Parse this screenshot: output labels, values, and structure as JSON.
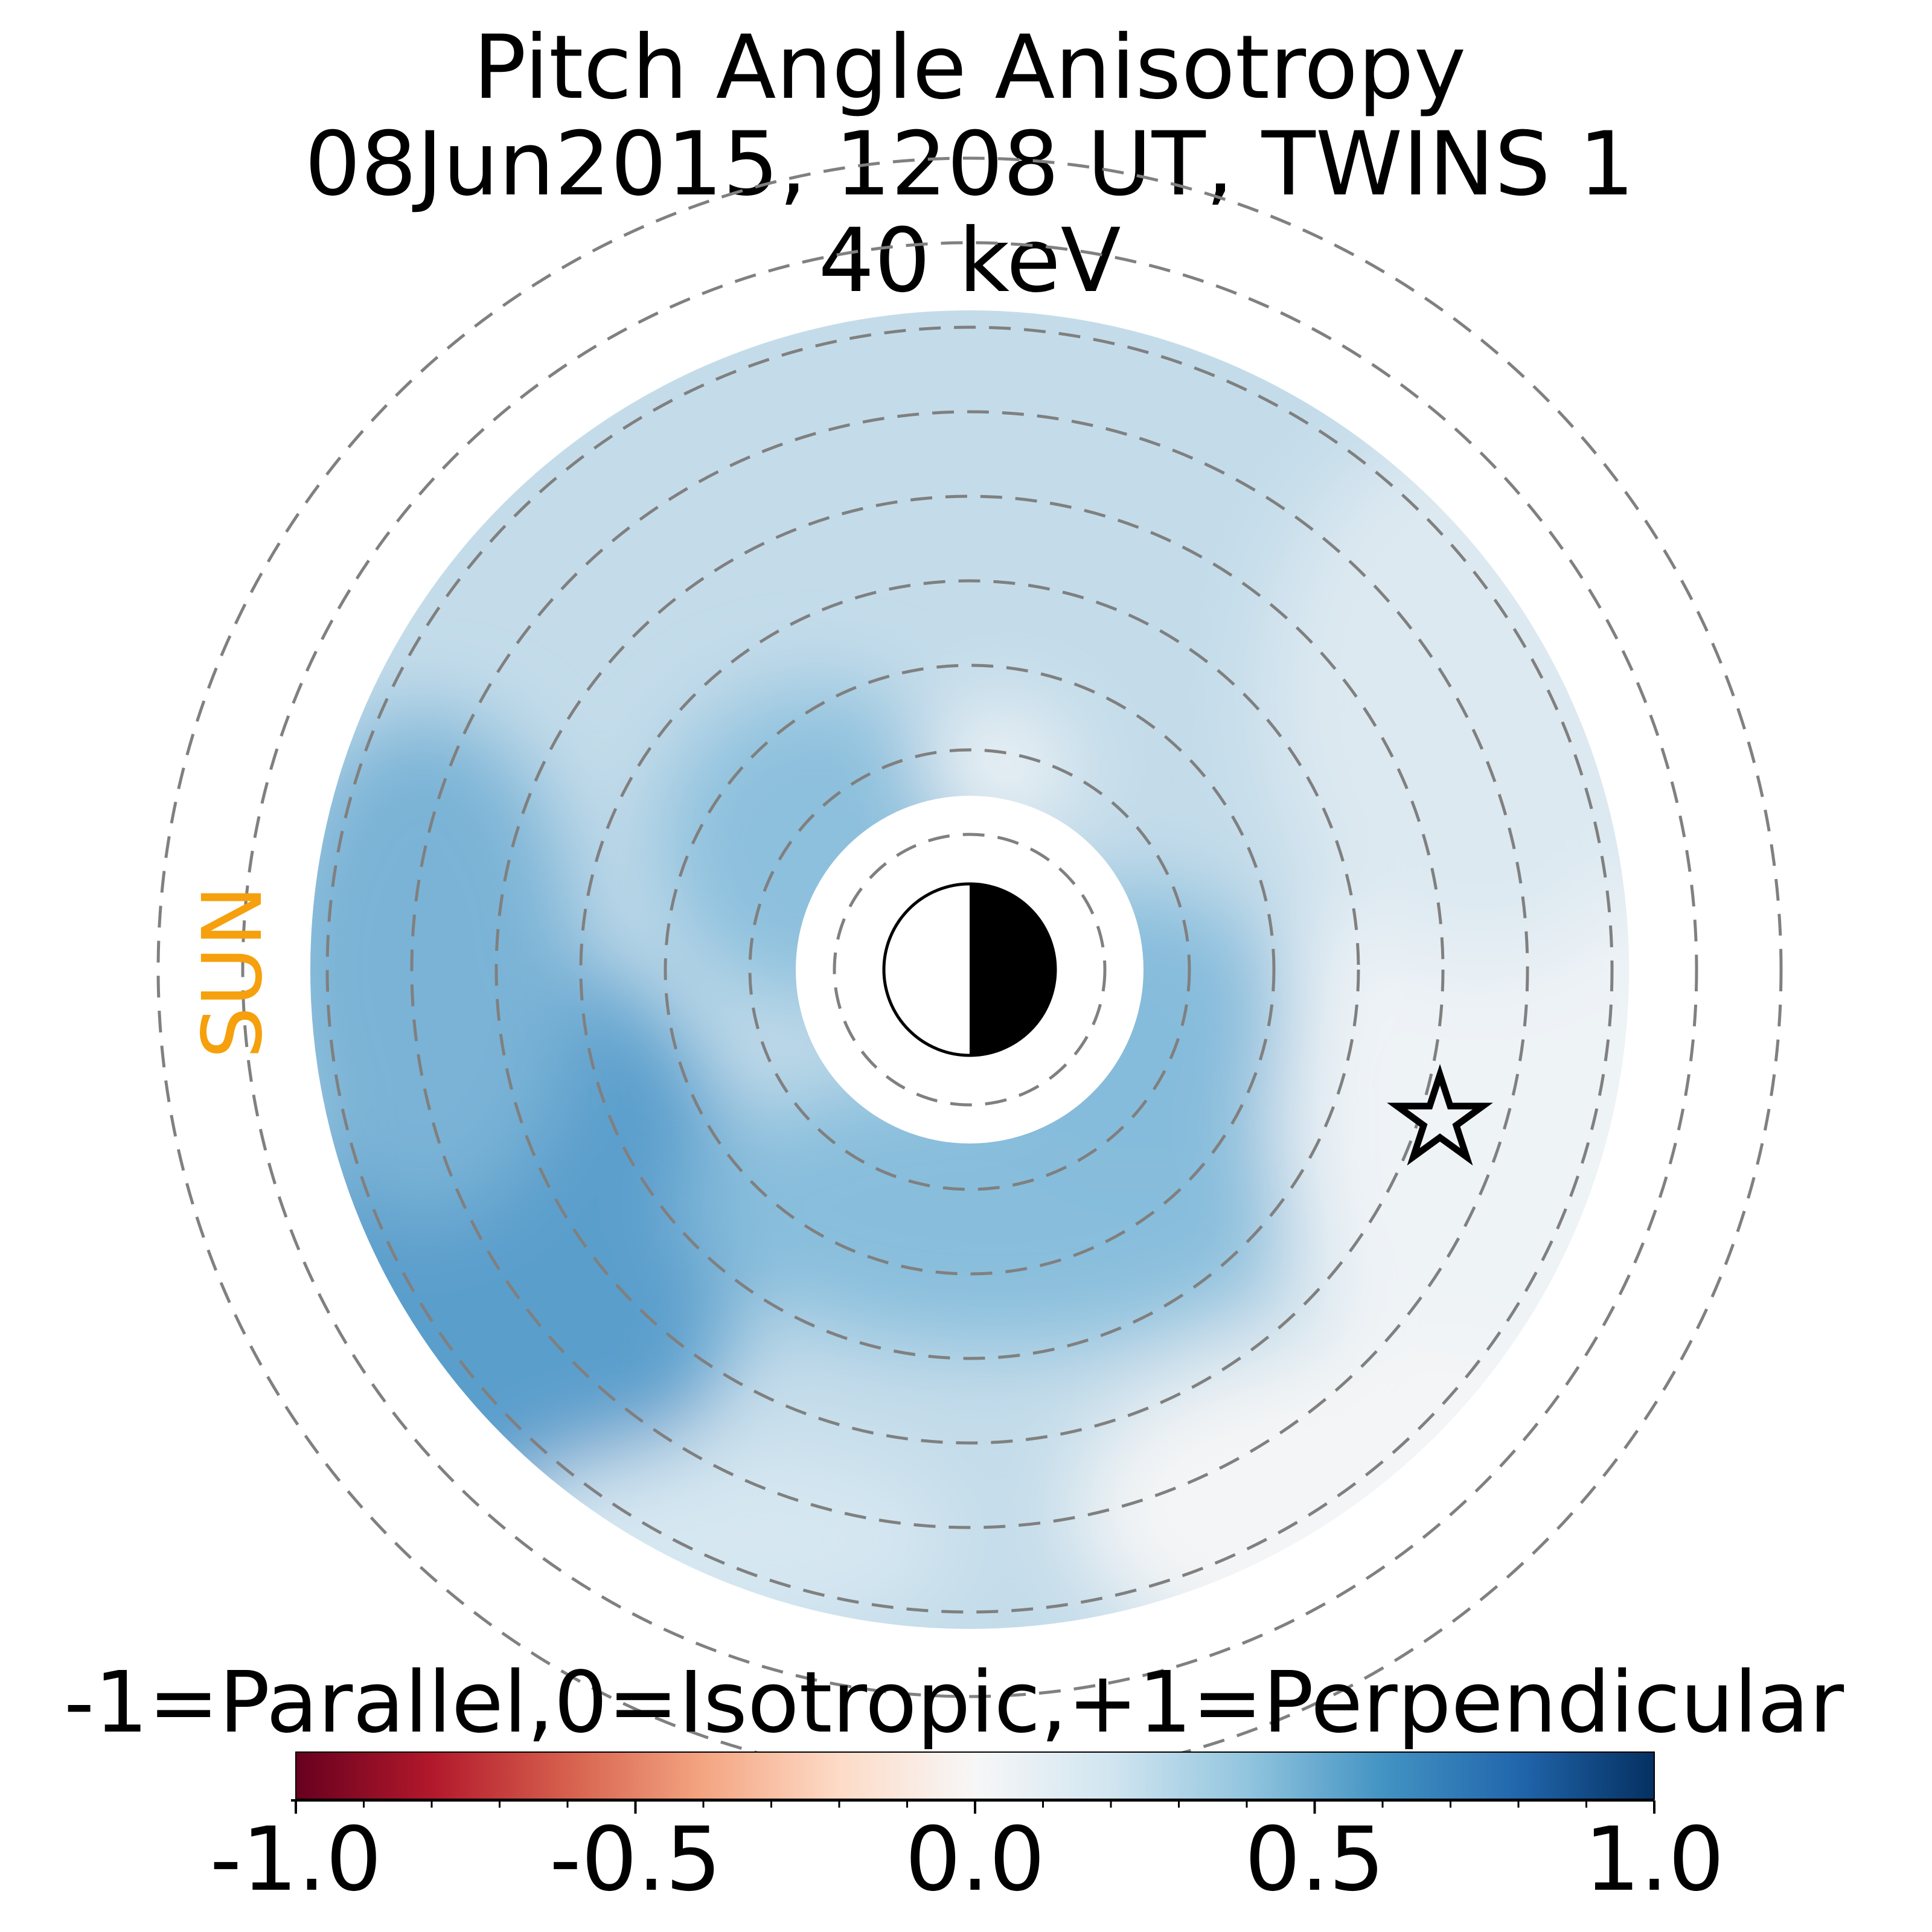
{
  "chart_data": {
    "type": "heatmap",
    "title": [
      "Pitch Angle Anisotropy",
      "08Jun2015, 1208 UT,  TWINS 1",
      "40 keV"
    ],
    "direction_label": "SUN",
    "colorbar": {
      "label": "-1=Parallel,0=Isotropic,+1=Perpendicular",
      "range": [
        -1.0,
        1.0
      ],
      "ticks": [
        -1.0,
        -0.5,
        0.0,
        0.5,
        1.0
      ],
      "tick_labels": [
        "-1.0",
        "-0.5",
        "0.0",
        "0.5",
        "1.0"
      ],
      "colormap": [
        "#67001f",
        "#b2182b",
        "#d6604d",
        "#f4a582",
        "#fddbc7",
        "#f7f7f7",
        "#d1e5f0",
        "#92c5de",
        "#4393c3",
        "#2166ac",
        "#053061"
      ]
    },
    "rings": 9,
    "field": [
      {
        "region": "inner ring near Earth, dayside",
        "value": 0.35
      },
      {
        "region": "inner ring near Earth, midnight/dusk",
        "value": 0.42
      },
      {
        "region": "mid ring, dayside",
        "value": 0.3
      },
      {
        "region": "mid ring, nightside",
        "value": 0.4
      },
      {
        "region": "outer edge, dawn-noon (lower left)",
        "value": 0.55
      },
      {
        "region": "outer edge, nightside",
        "value": 0.05
      },
      {
        "region": "outer edge, upper (dusk)",
        "value": 0.2
      },
      {
        "region": "near Earth, north of center",
        "value": 0.02
      }
    ],
    "marker": {
      "type": "star",
      "description": "spacecraft position"
    },
    "earth_symbol": "half-shaded circle (dayside white toward Sun)"
  }
}
